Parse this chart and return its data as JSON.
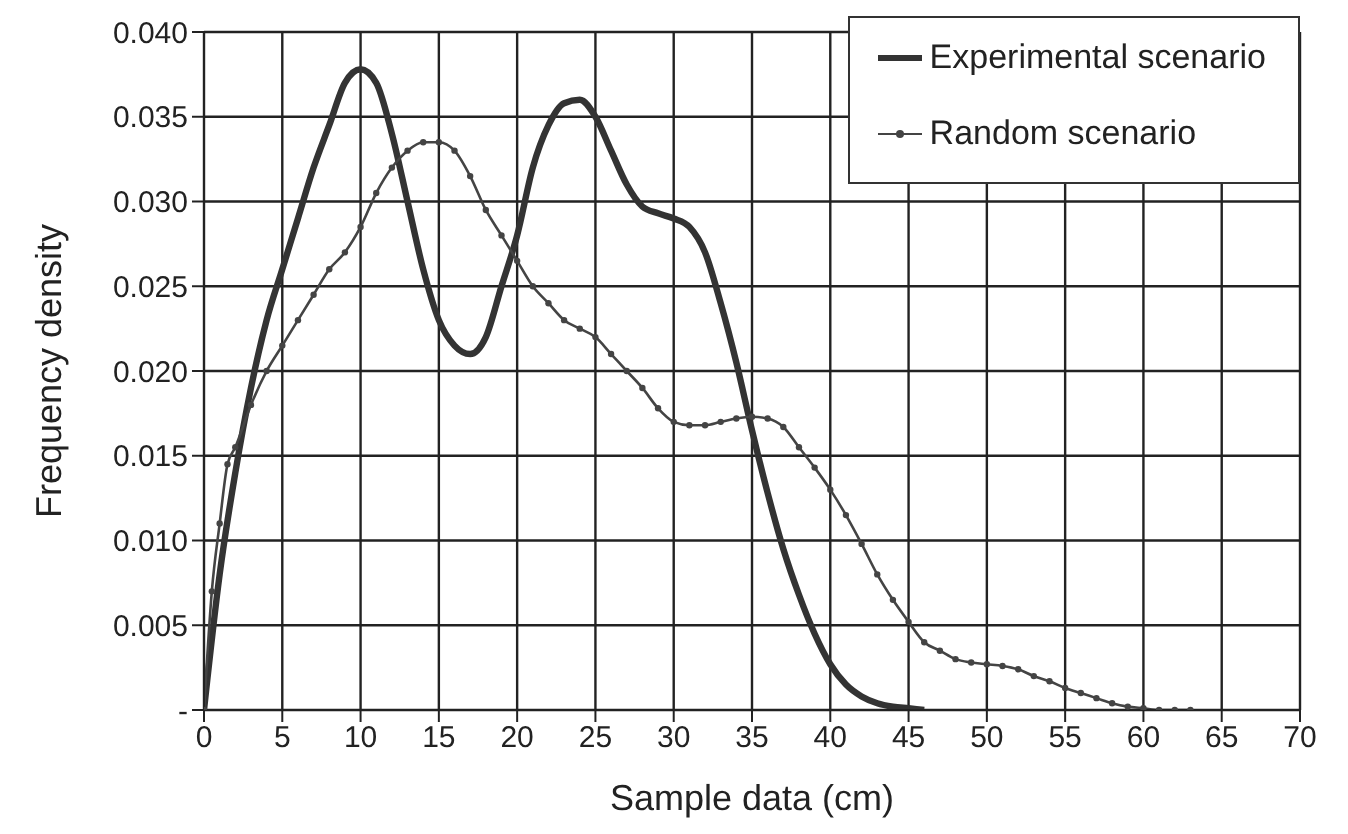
{
  "chart_data": {
    "type": "line",
    "xlabel": "Sample data (cm)",
    "ylabel": "Frequency density",
    "xlim": [
      0,
      70
    ],
    "xticks": [
      0,
      5,
      10,
      15,
      20,
      25,
      30,
      35,
      40,
      45,
      50,
      55,
      60,
      65,
      70
    ],
    "ylim": [
      0,
      0.04
    ],
    "yticks": [
      {
        "value": 0,
        "label": "-"
      },
      {
        "value": 0.005,
        "label": "0.005"
      },
      {
        "value": 0.01,
        "label": "0.010"
      },
      {
        "value": 0.015,
        "label": "0.015"
      },
      {
        "value": 0.02,
        "label": "0.020"
      },
      {
        "value": 0.025,
        "label": "0.025"
      },
      {
        "value": 0.03,
        "label": "0.030"
      },
      {
        "value": 0.035,
        "label": "0.035"
      },
      {
        "value": 0.04,
        "label": "0.040"
      }
    ],
    "grid": true,
    "legend": "top right",
    "line_style": "solid",
    "series": [
      {
        "name": "Experimental scenario",
        "color": "#333333",
        "marker": "none",
        "x": [
          0,
          1,
          2,
          3,
          4,
          5,
          6,
          7,
          8,
          9,
          10,
          11,
          12,
          13,
          14,
          15,
          16,
          17,
          18,
          19,
          20,
          21,
          22,
          23,
          24,
          25,
          26,
          27,
          28,
          29,
          30,
          31,
          32,
          33,
          34,
          35,
          36,
          37,
          38,
          39,
          40,
          41,
          42,
          43,
          44,
          45,
          46
        ],
        "values": [
          0,
          0.008,
          0.014,
          0.019,
          0.023,
          0.026,
          0.029,
          0.032,
          0.0345,
          0.037,
          0.0378,
          0.037,
          0.034,
          0.03,
          0.026,
          0.023,
          0.0215,
          0.021,
          0.022,
          0.025,
          0.028,
          0.032,
          0.0345,
          0.0358,
          0.036,
          0.035,
          0.033,
          0.031,
          0.0297,
          0.0293,
          0.029,
          0.0285,
          0.027,
          0.024,
          0.0205,
          0.0165,
          0.0128,
          0.0095,
          0.0068,
          0.0045,
          0.0027,
          0.0015,
          0.0008,
          0.0004,
          0.0002,
          0.0001,
          0
        ]
      },
      {
        "name": "Random scenario",
        "color": "#444444",
        "marker": "circle",
        "x": [
          0,
          0.5,
          1,
          1.5,
          2,
          3,
          4,
          5,
          6,
          7,
          8,
          9,
          10,
          11,
          12,
          13,
          14,
          15,
          16,
          17,
          18,
          19,
          20,
          21,
          22,
          23,
          24,
          25,
          26,
          27,
          28,
          29,
          30,
          31,
          32,
          33,
          34,
          35,
          36,
          37,
          38,
          39,
          40,
          41,
          42,
          43,
          44,
          45,
          46,
          47,
          48,
          49,
          50,
          51,
          52,
          53,
          54,
          55,
          56,
          57,
          58,
          59,
          60,
          61,
          62,
          63
        ],
        "values": [
          0,
          0.007,
          0.011,
          0.0145,
          0.0155,
          0.018,
          0.02,
          0.0215,
          0.023,
          0.0245,
          0.026,
          0.027,
          0.0285,
          0.0305,
          0.032,
          0.033,
          0.0335,
          0.0335,
          0.033,
          0.0315,
          0.0295,
          0.028,
          0.0265,
          0.025,
          0.024,
          0.023,
          0.0225,
          0.022,
          0.021,
          0.02,
          0.019,
          0.0178,
          0.017,
          0.0168,
          0.0168,
          0.017,
          0.0172,
          0.0173,
          0.0172,
          0.0167,
          0.0155,
          0.0143,
          0.013,
          0.0115,
          0.0098,
          0.008,
          0.0065,
          0.0052,
          0.004,
          0.0035,
          0.003,
          0.0028,
          0.0027,
          0.0026,
          0.0024,
          0.002,
          0.0017,
          0.0013,
          0.001,
          0.0007,
          0.0004,
          0.0002,
          0.0001,
          0,
          0,
          0
        ]
      }
    ]
  }
}
